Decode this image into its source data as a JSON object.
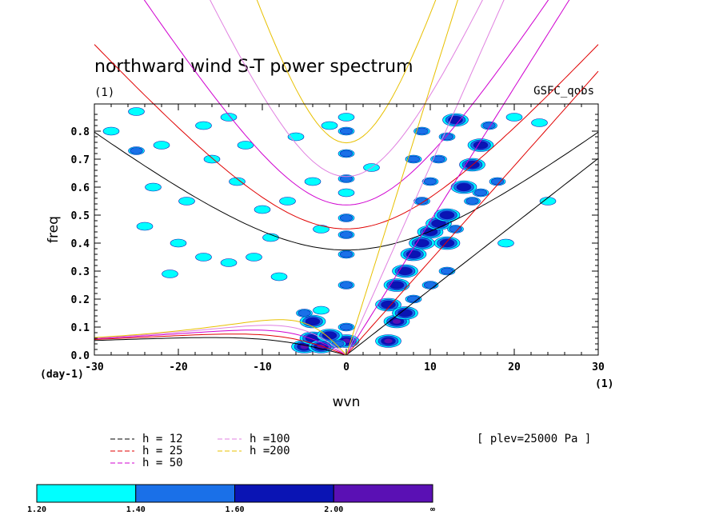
{
  "chart_data": {
    "type": "heatmap",
    "title": "northward wind S-T power spectrum",
    "subtitle": "(1)",
    "source_label": "GSFC_qobs",
    "xlabel": "wvn",
    "ylabel": "freq",
    "x_unit": "(1)",
    "y_unit": "(day-1)",
    "xlim": [
      -30,
      30
    ],
    "ylim": [
      0,
      0.88
    ],
    "x_ticks": [
      -30,
      -20,
      -10,
      0,
      10,
      20,
      30
    ],
    "y_ticks": [
      0.0,
      0.1,
      0.2,
      0.3,
      0.4,
      0.5,
      0.6,
      0.7,
      0.8
    ],
    "annotation": "[ plev=25000 Pa ]",
    "contour_levels": {
      "labels": [
        "1.20",
        "1.40",
        "1.60",
        "2.00",
        "∞"
      ],
      "colors": [
        "#00ffff",
        "#1a70e8",
        "#0a14b4",
        "#5a10b4"
      ]
    },
    "dispersion_curves": [
      {
        "name": "h = 12",
        "h": 12,
        "color": "#000000"
      },
      {
        "name": "h = 25",
        "h": 25,
        "color": "#e00000"
      },
      {
        "name": "h = 50",
        "h": 50,
        "color": "#d000d0"
      },
      {
        "name": "h =100",
        "h": 100,
        "color": "#e080e0"
      },
      {
        "name": "h =200",
        "h": 200,
        "color": "#e8c000"
      }
    ],
    "blobs": [
      {
        "k": 0,
        "f": 0.05,
        "level": 3
      },
      {
        "k": 0,
        "f": 0.1,
        "level": 1
      },
      {
        "k": 0,
        "f": 0.25,
        "level": 1
      },
      {
        "k": 0,
        "f": 0.36,
        "level": 1
      },
      {
        "k": 0,
        "f": 0.43,
        "level": 1
      },
      {
        "k": 0,
        "f": 0.49,
        "level": 1
      },
      {
        "k": 0,
        "f": 0.58,
        "level": 0
      },
      {
        "k": 0,
        "f": 0.63,
        "level": 1
      },
      {
        "k": 0,
        "f": 0.72,
        "level": 1
      },
      {
        "k": 0,
        "f": 0.8,
        "level": 1
      },
      {
        "k": 0,
        "f": 0.85,
        "level": 0
      },
      {
        "k": -5,
        "f": 0.03,
        "level": 3
      },
      {
        "k": -4,
        "f": 0.06,
        "level": 2
      },
      {
        "k": -3,
        "f": 0.03,
        "level": 3
      },
      {
        "k": -2,
        "f": 0.07,
        "level": 2
      },
      {
        "k": -4,
        "f": 0.12,
        "level": 2
      },
      {
        "k": -5,
        "f": 0.15,
        "level": 1
      },
      {
        "k": -3,
        "f": 0.16,
        "level": 0
      },
      {
        "k": -1,
        "f": 0.04,
        "level": 1
      },
      {
        "k": 5,
        "f": 0.05,
        "level": 3
      },
      {
        "k": 6,
        "f": 0.12,
        "level": 3
      },
      {
        "k": 5,
        "f": 0.18,
        "level": 2
      },
      {
        "k": 6,
        "f": 0.25,
        "level": 2
      },
      {
        "k": 7,
        "f": 0.3,
        "level": 2
      },
      {
        "k": 8,
        "f": 0.36,
        "level": 2
      },
      {
        "k": 9,
        "f": 0.4,
        "level": 2
      },
      {
        "k": 10,
        "f": 0.44,
        "level": 2
      },
      {
        "k": 11,
        "f": 0.47,
        "level": 2
      },
      {
        "k": 12,
        "f": 0.5,
        "level": 2
      },
      {
        "k": 12,
        "f": 0.4,
        "level": 2
      },
      {
        "k": 13,
        "f": 0.45,
        "level": 1
      },
      {
        "k": 14,
        "f": 0.6,
        "level": 2
      },
      {
        "k": 15,
        "f": 0.68,
        "level": 2
      },
      {
        "k": 16,
        "f": 0.75,
        "level": 2
      },
      {
        "k": 17,
        "f": 0.82,
        "level": 1
      },
      {
        "k": 12,
        "f": 0.3,
        "level": 1
      },
      {
        "k": 10,
        "f": 0.25,
        "level": 1
      },
      {
        "k": 9,
        "f": 0.55,
        "level": 1
      },
      {
        "k": 10,
        "f": 0.62,
        "level": 1
      },
      {
        "k": 11,
        "f": 0.7,
        "level": 1
      },
      {
        "k": 12,
        "f": 0.78,
        "level": 1
      },
      {
        "k": 13,
        "f": 0.84,
        "level": 2
      },
      {
        "k": 16,
        "f": 0.58,
        "level": 1
      },
      {
        "k": 18,
        "f": 0.62,
        "level": 1
      },
      {
        "k": 20,
        "f": 0.85,
        "level": 0
      },
      {
        "k": 15,
        "f": 0.55,
        "level": 1
      },
      {
        "k": 8,
        "f": 0.7,
        "level": 1
      },
      {
        "k": 9,
        "f": 0.8,
        "level": 1
      },
      {
        "k": 7,
        "f": 0.15,
        "level": 2
      },
      {
        "k": 8,
        "f": 0.2,
        "level": 1
      },
      {
        "k": -28,
        "f": 0.8,
        "level": 0
      },
      {
        "k": -25,
        "f": 0.87,
        "level": 0
      },
      {
        "k": -25,
        "f": 0.73,
        "level": 1
      },
      {
        "k": -22,
        "f": 0.75,
        "level": 0
      },
      {
        "k": -23,
        "f": 0.6,
        "level": 0
      },
      {
        "k": -19,
        "f": 0.55,
        "level": 0
      },
      {
        "k": -17,
        "f": 0.82,
        "level": 0
      },
      {
        "k": -16,
        "f": 0.7,
        "level": 0
      },
      {
        "k": -14,
        "f": 0.85,
        "level": 0
      },
      {
        "k": -13,
        "f": 0.62,
        "level": 0
      },
      {
        "k": -20,
        "f": 0.4,
        "level": 0
      },
      {
        "k": -17,
        "f": 0.35,
        "level": 0
      },
      {
        "k": -14,
        "f": 0.33,
        "level": 0
      },
      {
        "k": -11,
        "f": 0.35,
        "level": 0
      },
      {
        "k": -9,
        "f": 0.42,
        "level": 0
      },
      {
        "k": -8,
        "f": 0.28,
        "level": 0
      },
      {
        "k": -6,
        "f": 0.78,
        "level": 0
      },
      {
        "k": -4,
        "f": 0.62,
        "level": 0
      },
      {
        "k": -10,
        "f": 0.52,
        "level": 0
      },
      {
        "k": -3,
        "f": 0.45,
        "level": 0
      },
      {
        "k": -24,
        "f": 0.46,
        "level": 0
      },
      {
        "k": -21,
        "f": 0.29,
        "level": 0
      },
      {
        "k": -7,
        "f": 0.55,
        "level": 0
      },
      {
        "k": -12,
        "f": 0.75,
        "level": 0
      },
      {
        "k": -2,
        "f": 0.82,
        "level": 0
      },
      {
        "k": 3,
        "f": 0.67,
        "level": 0
      },
      {
        "k": 23,
        "f": 0.83,
        "level": 0
      },
      {
        "k": 19,
        "f": 0.4,
        "level": 0
      },
      {
        "k": 24,
        "f": 0.55,
        "level": 0
      }
    ]
  }
}
